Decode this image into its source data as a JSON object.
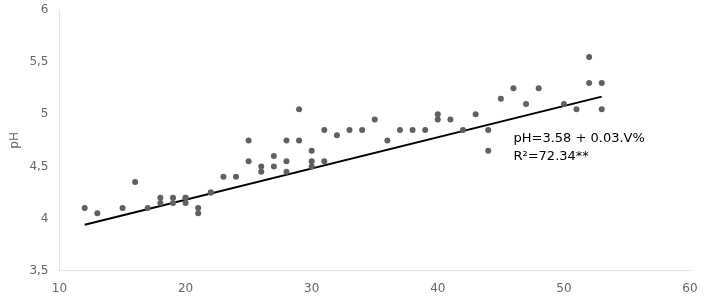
{
  "chart_data": {
    "type": "scatter",
    "ylabel": "pH",
    "series": [
      {
        "type": "scatter",
        "color": "#606060",
        "x": [
          12,
          13,
          15,
          16,
          17,
          18,
          18,
          19,
          19,
          20,
          20,
          20,
          21,
          21,
          22,
          22,
          23,
          24,
          25,
          25,
          26,
          26,
          27,
          27,
          28,
          28,
          28,
          29,
          29,
          30,
          30,
          30,
          31,
          31,
          32,
          33,
          34,
          35,
          36,
          37,
          38,
          39,
          40,
          40,
          41,
          42,
          43,
          44,
          44,
          45,
          46,
          47,
          48,
          50,
          51,
          52,
          52,
          53,
          53
        ],
        "values": [
          4.1,
          4.05,
          4.1,
          4.35,
          4.1,
          4.2,
          4.15,
          4.15,
          4.2,
          4.2,
          4.15,
          4.2,
          4.05,
          4.1,
          4.25,
          4.25,
          4.4,
          4.4,
          4.55,
          4.75,
          4.45,
          4.5,
          4.6,
          4.5,
          4.55,
          4.75,
          4.45,
          4.75,
          5.05,
          4.55,
          4.5,
          4.65,
          4.55,
          4.85,
          4.8,
          4.85,
          4.85,
          4.95,
          4.75,
          4.85,
          4.85,
          4.85,
          4.95,
          5.0,
          4.95,
          4.85,
          5.0,
          4.85,
          4.65,
          5.15,
          5.25,
          5.1,
          5.25,
          5.1,
          5.05,
          5.55,
          5.3,
          5.05,
          5.3
        ]
      },
      {
        "type": "line",
        "color": "#000000",
        "x": [
          12,
          53
        ],
        "values": [
          3.94,
          5.17
        ]
      }
    ],
    "annotations": [
      "pH=3.58 + 0.03.V%",
      "R²=72.34**"
    ],
    "xlim": [
      10,
      60
    ],
    "ylim": [
      3.5,
      6.0
    ],
    "xticks": [
      10,
      20,
      30,
      40,
      50,
      60
    ],
    "yticks": [
      {
        "value": 3.5,
        "label": "3,5"
      },
      4,
      {
        "value": 4.5,
        "label": "4,5"
      },
      5,
      {
        "value": 5.5,
        "label": "5,5"
      },
      6
    ],
    "grid": false
  }
}
